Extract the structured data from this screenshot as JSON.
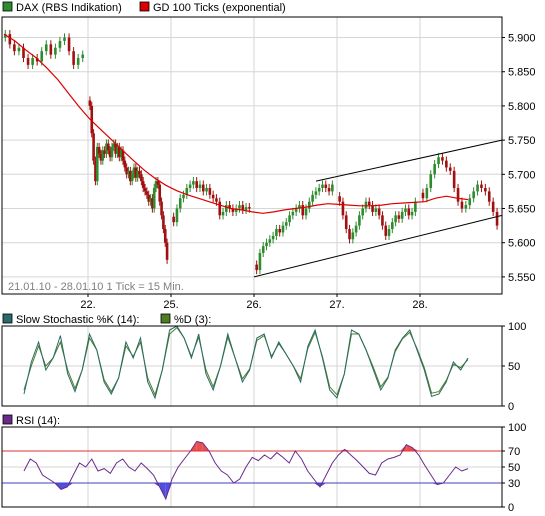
{
  "colors": {
    "background": "#ffffff",
    "grid": "#d6d6d6",
    "frame": "#000000",
    "candle_up": "#2e8b2e",
    "candle_down": "#a01010",
    "gd100": "#dd0000",
    "trend_channel": "#000000",
    "stoch_k": "#2a6a6a",
    "stoch_d": "#4e7d24",
    "rsi": "#6a2a8a",
    "rsi_ref_70": "#e03030",
    "rsi_ref_30": "#4040c0",
    "rsi_fill_high": "#e85050",
    "rsi_fill_low": "#5050e0"
  },
  "legend": {
    "price_series": "DAX (RBS Indikation)",
    "price_swatch_color": "#2e8b2e",
    "ma_series": "GD 100 Ticks (exponential)",
    "ma_swatch_color": "#dd0000",
    "stoch_k_label": "Slow Stochastic %K (14):",
    "stoch_k_swatch_color": "#2a6a6a",
    "stoch_d_label": "%D (3):",
    "stoch_d_swatch_color": "#4e7d24",
    "rsi_label": "RSI (14):",
    "rsi_swatch_color": "#6a2a8a"
  },
  "meta_text": "21.01.10 - 28.01.10   1 Tick = 15 Min.",
  "chart_data": [
    {
      "type": "candlestick",
      "series": [
        {
          "name": "DAX (RBS Indikation)",
          "description": "Approximate 15-min close path per session",
          "sessions": [
            {
              "day": "21.01.",
              "closes": [
                5905,
                5890,
                5880,
                5885,
                5870,
                5860,
                5870,
                5865,
                5880,
                5890,
                5875,
                5885,
                5895,
                5900,
                5880,
                5860,
                5870,
                5875
              ]
            },
            {
              "day": "22.01.",
              "closes": [
                5800,
                5760,
                5720,
                5690,
                5740,
                5730,
                5720,
                5735,
                5730,
                5745,
                5735,
                5725,
                5740,
                5745,
                5730,
                5740,
                5725,
                5735,
                5720,
                5710,
                5700,
                5705,
                5690,
                5700,
                5710,
                5695,
                5705,
                5700,
                5690,
                5680,
                5675,
                5670,
                5660,
                5665,
                5650,
                5680,
                5690,
                5685,
                5660,
                5640,
                5620,
                5600,
                5575
              ]
            },
            {
              "day": "25.01.",
              "closes": [
                5630,
                5650,
                5665,
                5670,
                5680,
                5685,
                5690,
                5680,
                5685,
                5675,
                5680,
                5670,
                5665,
                5660,
                5640,
                5645,
                5655,
                5650,
                5645,
                5650,
                5655,
                5648,
                5652,
                5650
              ]
            },
            {
              "day": "26.01.",
              "closes": [
                5560,
                5585,
                5595,
                5600,
                5605,
                5610,
                5620,
                5615,
                5625,
                5630,
                5640,
                5645,
                5650,
                5655,
                5640,
                5650,
                5660,
                5670,
                5675,
                5680,
                5685,
                5680,
                5675,
                5685
              ]
            },
            {
              "day": "27.01.",
              "closes": [
                5660,
                5640,
                5620,
                5605,
                5615,
                5625,
                5640,
                5650,
                5660,
                5655,
                5645,
                5650,
                5640,
                5625,
                5610,
                5620,
                5630,
                5640,
                5635,
                5645,
                5650,
                5640,
                5645,
                5660
              ]
            },
            {
              "day": "28.01.",
              "closes": [
                5665,
                5680,
                5700,
                5715,
                5725,
                5720,
                5710,
                5705,
                5680,
                5660,
                5650,
                5655,
                5665,
                5675,
                5685,
                5680,
                5675,
                5660,
                5645,
                5625
              ]
            }
          ]
        },
        {
          "name": "GD 100 Ticks (exponential)",
          "values": [
            5905,
            5895,
            5882,
            5870,
            5855,
            5838,
            5818,
            5798,
            5780,
            5765,
            5750,
            5735,
            5720,
            5706,
            5694,
            5684,
            5676,
            5670,
            5665,
            5660,
            5655,
            5650,
            5648,
            5645,
            5643,
            5645,
            5648,
            5650,
            5652,
            5655,
            5657,
            5656,
            5655,
            5654,
            5654,
            5655,
            5657,
            5658,
            5659,
            5660,
            5665,
            5668,
            5665,
            5663
          ]
        }
      ],
      "trend_channel": {
        "upper": {
          "from": {
            "day": "26.01.",
            "value": 5690
          },
          "to": {
            "day": "28.01.",
            "value": 5750
          }
        },
        "lower": {
          "from": {
            "day": "26.01.",
            "value": 5550
          },
          "to": {
            "day": "28.01.",
            "value": 5640
          }
        }
      },
      "x_tick_labels": [
        "22.",
        "25.",
        "26.",
        "27.",
        "28."
      ],
      "y_tick_labels": [
        "5.550",
        "5.600",
        "5.650",
        "5.700",
        "5.750",
        "5.800",
        "5.850",
        "5.900"
      ],
      "y_ticks": [
        5550,
        5600,
        5650,
        5700,
        5750,
        5800,
        5850,
        5900
      ],
      "ylim": [
        5525,
        5930
      ],
      "grid": true,
      "legend_position": "top-left"
    },
    {
      "type": "line",
      "series": [
        {
          "name": "Slow Stochastic %K (14):",
          "values": [
            15,
            55,
            80,
            45,
            60,
            88,
            40,
            18,
            45,
            90,
            70,
            30,
            15,
            35,
            80,
            60,
            85,
            30,
            10,
            45,
            95,
            100,
            85,
            60,
            90,
            40,
            20,
            50,
            90,
            60,
            30,
            45,
            85,
            90,
            60,
            80,
            65,
            50,
            30,
            75,
            95,
            60,
            20,
            10,
            40,
            95,
            90,
            70,
            45,
            20,
            35,
            70,
            85,
            95,
            70,
            45,
            12,
            15,
            30,
            55,
            45,
            60
          ]
        },
        {
          "name": "%D (3):",
          "values": [
            20,
            50,
            75,
            50,
            60,
            80,
            45,
            22,
            45,
            85,
            70,
            33,
            18,
            35,
            75,
            62,
            80,
            35,
            14,
            45,
            90,
            98,
            85,
            62,
            86,
            45,
            24,
            50,
            86,
            60,
            34,
            46,
            82,
            88,
            62,
            78,
            65,
            50,
            34,
            72,
            92,
            62,
            24,
            14,
            40,
            90,
            90,
            70,
            48,
            24,
            36,
            68,
            84,
            92,
            72,
            48,
            16,
            18,
            32,
            52,
            48,
            58
          ]
        }
      ],
      "y_tick_labels": [
        "0",
        "50",
        "100"
      ],
      "y_ticks": [
        0,
        50,
        100
      ],
      "ylim": [
        0,
        100
      ],
      "grid": true,
      "legend_position": "top-left"
    },
    {
      "type": "line",
      "series": [
        {
          "name": "RSI (14):",
          "values": [
            45,
            60,
            55,
            40,
            35,
            30,
            22,
            25,
            40,
            55,
            50,
            60,
            45,
            48,
            42,
            55,
            60,
            50,
            45,
            55,
            48,
            40,
            25,
            10,
            35,
            50,
            60,
            70,
            82,
            80,
            70,
            55,
            45,
            40,
            30,
            35,
            50,
            62,
            58,
            65,
            60,
            68,
            62,
            55,
            70,
            60,
            45,
            35,
            25,
            40,
            55,
            65,
            72,
            65,
            58,
            50,
            42,
            40,
            55,
            60,
            62,
            65,
            78,
            74,
            65,
            52,
            40,
            28,
            30,
            40,
            50,
            45,
            48
          ]
        }
      ],
      "reference_lines": [
        70,
        30
      ],
      "y_tick_labels": [
        "0",
        "30",
        "50",
        "70",
        "100"
      ],
      "y_ticks": [
        0,
        30,
        50,
        70,
        100
      ],
      "ylim": [
        0,
        100
      ],
      "grid": true,
      "legend_position": "top-left"
    }
  ]
}
